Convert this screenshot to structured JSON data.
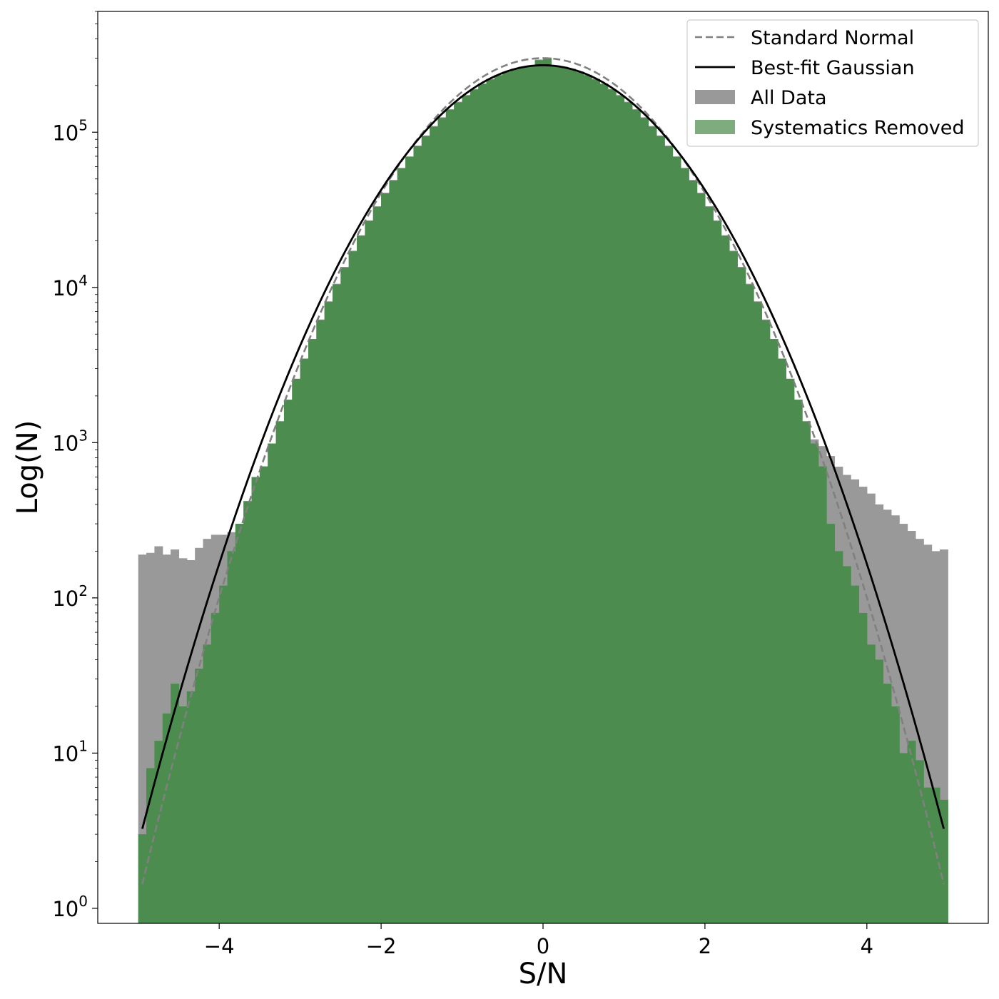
{
  "chart_data": {
    "type": "histogram",
    "title": "",
    "xlabel": "S/N",
    "ylabel": "Log(N)",
    "yscale": "log",
    "xlim": [
      -5.5,
      5.5
    ],
    "ylim": [
      0.8,
      600000
    ],
    "x_ticks": [
      -4,
      -2,
      0,
      2,
      4
    ],
    "x_tick_labels": [
      "−4",
      "−2",
      "0",
      "2",
      "4"
    ],
    "y_ticks": [
      {
        "value": 1,
        "base": "10",
        "exp": "0"
      },
      {
        "value": 10,
        "base": "10",
        "exp": "1"
      },
      {
        "value": 100,
        "base": "10",
        "exp": "2"
      },
      {
        "value": 1000,
        "base": "10",
        "exp": "3"
      },
      {
        "value": 10000,
        "base": "10",
        "exp": "4"
      },
      {
        "value": 100000,
        "base": "10",
        "exp": "5"
      }
    ],
    "bins": {
      "start": -5.0,
      "end": 5.0,
      "width": 0.1
    },
    "legend": {
      "position": "upper right",
      "entries": [
        {
          "label": "Standard Normal",
          "style": "dashed-line",
          "color": "#808080"
        },
        {
          "label": "Best-fit Gaussian",
          "style": "solid-line",
          "color": "#000000"
        },
        {
          "label": "All Data",
          "style": "patch",
          "color": "#999999"
        },
        {
          "label": "Systematics Removed",
          "style": "patch",
          "color": "#4c8c4e"
        }
      ]
    },
    "series": [
      {
        "name": "All Data",
        "kind": "histogram",
        "color": "#999999",
        "left_tail_counts": [
          190,
          195,
          215,
          190,
          205,
          180,
          175,
          210,
          240,
          255,
          255,
          265,
          300,
          340,
          420,
          560,
          650,
          1000,
          1500,
          1950,
          2400,
          3100
        ],
        "right_tail_counts": [
          2700,
          2100,
          1700,
          1450,
          1250,
          1050,
          950,
          820,
          700,
          620,
          580,
          520,
          470,
          400,
          370,
          340,
          300,
          270,
          240,
          220,
          200,
          205
        ],
        "core": "follows Systematics Removed"
      },
      {
        "name": "Systematics Removed",
        "kind": "histogram",
        "color": "#4c8c4e",
        "left_tail_counts": [
          3,
          8,
          12,
          18,
          28,
          20,
          25,
          35,
          50,
          80,
          120,
          200,
          300,
          420,
          600
        ],
        "right_tail_counts": [
          300,
          200,
          160,
          120,
          80,
          50,
          40,
          28,
          20,
          10,
          12,
          9,
          6,
          6,
          5
        ],
        "peak_counts": {
          "x": 0.0,
          "value": 300000
        },
        "core": "Gaussian, amplitude 270000, sigma 1.0"
      },
      {
        "name": "Standard Normal",
        "kind": "curve",
        "color": "#808080",
        "dash": true,
        "amplitude": 300000,
        "mean": 0,
        "sigma": 1.0
      },
      {
        "name": "Best-fit Gaussian",
        "kind": "curve",
        "color": "#000000",
        "dash": false,
        "amplitude": 270000,
        "mean": 0,
        "sigma": 1.04
      }
    ]
  }
}
